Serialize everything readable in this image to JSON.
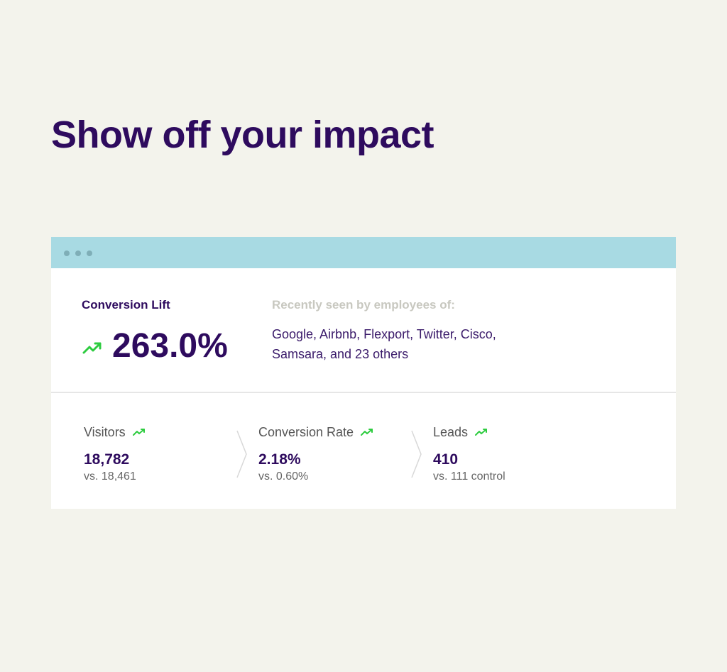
{
  "headline": "Show off your impact",
  "colors": {
    "headline": "#2e0b5e",
    "titlebar": "#a8dae3",
    "trend_up": "#2ecc40",
    "background": "#f3f3ec"
  },
  "window": {
    "conversion_lift": {
      "label": "Conversion Lift",
      "value": "263.0%",
      "icon": "trending-up-icon"
    },
    "recently_seen": {
      "label": "Recently seen by employees of:",
      "companies": "Google, Airbnb, Flexport, Twitter, Cisco, Samsara, and 23 others"
    },
    "metrics": [
      {
        "label": "Visitors",
        "value": "18,782",
        "comparison": "vs. 18,461",
        "icon": "trending-up-icon"
      },
      {
        "label": "Conversion Rate",
        "value": "2.18%",
        "comparison": "vs. 0.60%",
        "icon": "trending-up-icon"
      },
      {
        "label": "Leads",
        "value": "410",
        "comparison": "vs. 111 control",
        "icon": "trending-up-icon"
      }
    ]
  }
}
